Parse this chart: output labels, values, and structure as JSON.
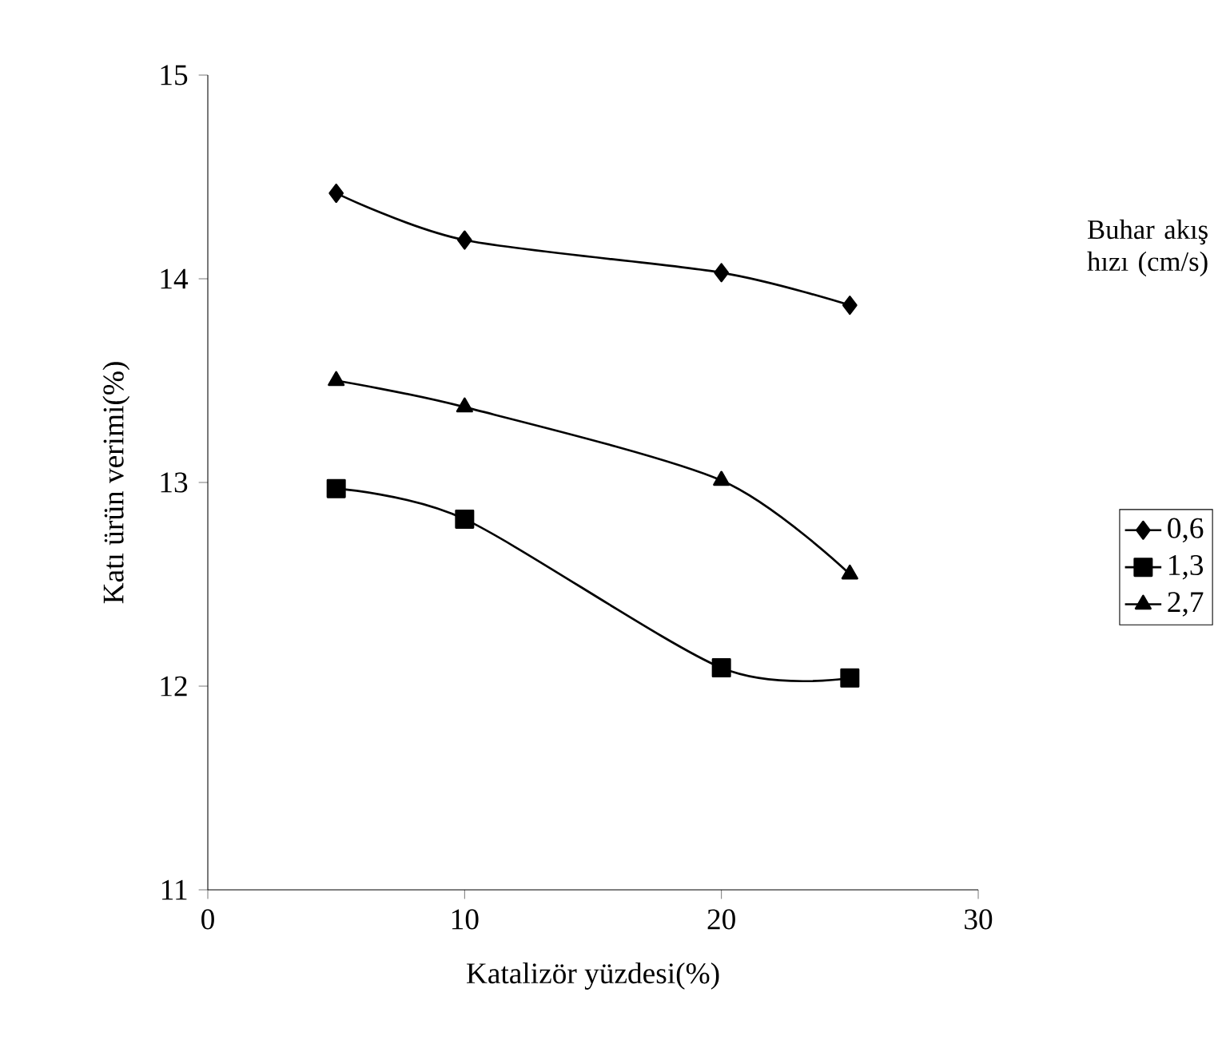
{
  "chart_data": {
    "type": "line",
    "xlabel": "Katalizör yüzdesi(%)",
    "ylabel": "Katı ürün verimi(%)",
    "legend_title": "Buhar akış hızı (cm/s)",
    "legend": "right",
    "x": [
      5,
      10,
      20,
      25
    ],
    "xlim": [
      0,
      30
    ],
    "xticks": [
      0,
      10,
      20,
      30
    ],
    "ylim": [
      11,
      15
    ],
    "yticks": [
      11,
      12,
      13,
      14,
      15
    ],
    "grid": false,
    "series": [
      {
        "name": "0,6",
        "color": "#000000",
        "marker": "diamond",
        "values": [
          14.42,
          14.19,
          14.03,
          13.87
        ]
      },
      {
        "name": "1,3",
        "color": "#000000",
        "marker": "square",
        "values": [
          12.97,
          12.82,
          12.09,
          12.04
        ]
      },
      {
        "name": "2,7",
        "color": "#000000",
        "marker": "triangle",
        "values": [
          13.5,
          13.37,
          13.01,
          12.55
        ]
      }
    ]
  }
}
